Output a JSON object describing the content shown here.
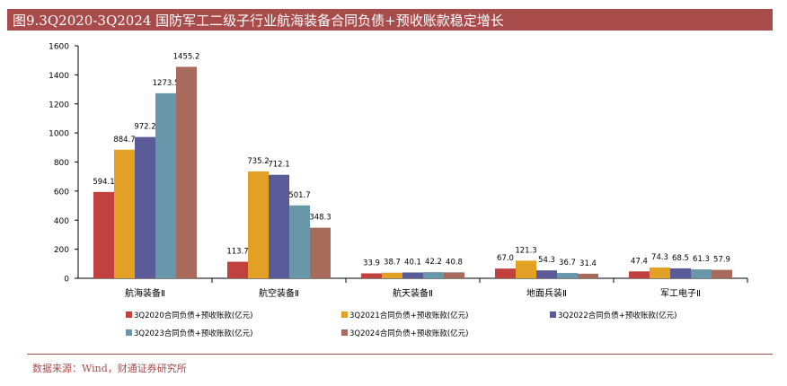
{
  "title": "图9.3Q2020-3Q2024 国防军工二级子行业航海装备合同负债+预收账款稳定增长",
  "source": "数据来源：Wind，财通证券研究所",
  "chart_data": {
    "type": "bar",
    "categories": [
      "航海装备Ⅱ",
      "航空装备Ⅱ",
      "航天装备Ⅱ",
      "地面兵装Ⅱ",
      "军工电子Ⅱ"
    ],
    "series": [
      {
        "name": "3Q2020合同负债+预收账款(亿元)",
        "color": "#c0413d",
        "values": [
          594.1,
          113.7,
          33.9,
          67.0,
          47.4
        ],
        "labels": [
          "594.1",
          "113.7",
          "33.9",
          "67.0",
          "47.4"
        ]
      },
      {
        "name": "3Q2021合同负债+预收账款(亿元)",
        "color": "#e2a125",
        "values": [
          884.7,
          735.2,
          38.7,
          121.3,
          74.3
        ],
        "labels": [
          "884.7",
          "735.2",
          "38.7",
          "121.3",
          "74.3"
        ]
      },
      {
        "name": "3Q2022合同负债+预收账款(亿元)",
        "color": "#5b5b9a",
        "values": [
          972.2,
          712.1,
          40.1,
          54.3,
          68.5
        ],
        "labels": [
          "972.2",
          "712.1",
          "40.1",
          "54.3",
          "68.5"
        ]
      },
      {
        "name": "3Q2023合同负债+预收账款(亿元)",
        "color": "#6797a8",
        "values": [
          1273.5,
          501.7,
          42.2,
          36.7,
          61.3
        ],
        "labels": [
          "1273.5",
          "501.7",
          "42.2",
          "36.7",
          "61.3"
        ]
      },
      {
        "name": "3Q2024合同负债+预收账款(亿元)",
        "color": "#a86a5a",
        "values": [
          1455.2,
          348.3,
          40.8,
          31.4,
          57.9
        ],
        "labels": [
          "1455.2",
          "348.3",
          "40.8",
          "31.4",
          "57.9"
        ]
      }
    ],
    "ylim": [
      0,
      1600
    ],
    "yticks": [
      "0",
      "200",
      "400",
      "600",
      "800",
      "1000",
      "1200",
      "1400",
      "1600"
    ],
    "grid": false,
    "legend_position": "bottom"
  }
}
